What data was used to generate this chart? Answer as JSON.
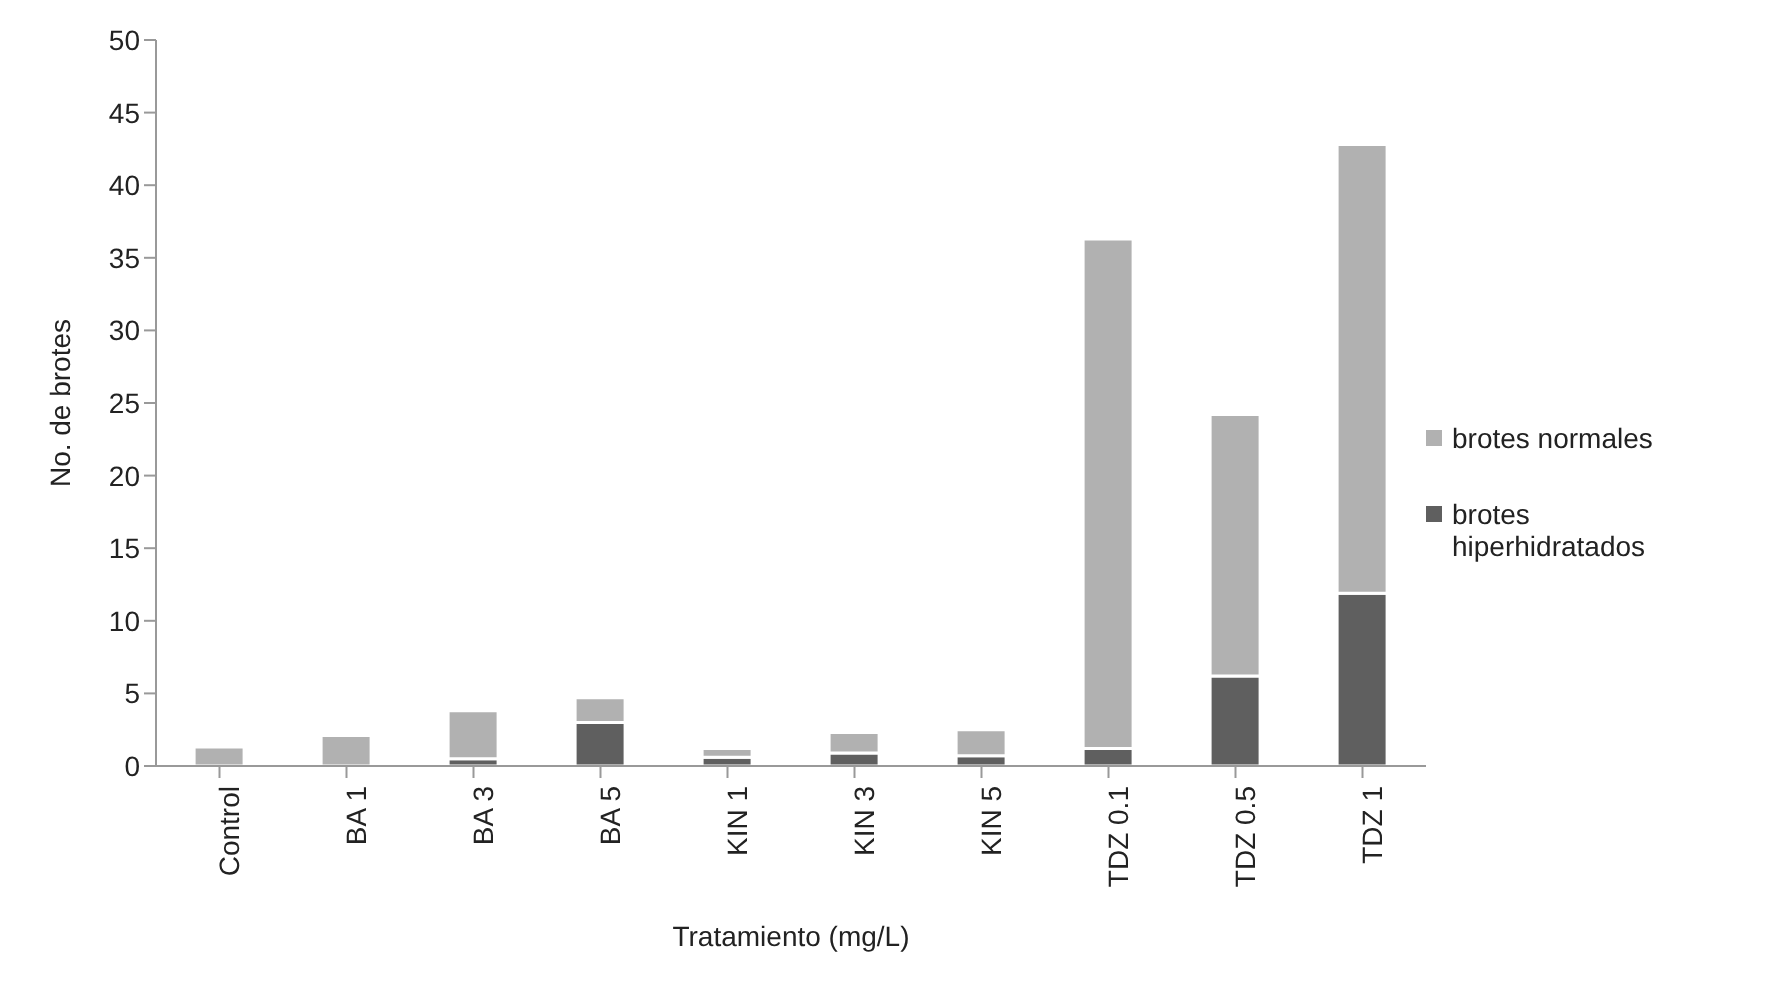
{
  "chart_data": {
    "type": "bar",
    "stacked": true,
    "xlabel": "Tratamiento (mg/L)",
    "ylabel": "No. de brotes",
    "categories": [
      "Control",
      "BA 1",
      "BA 3",
      "BA 5",
      "KIN 1",
      "KIN 3",
      "KIN 5",
      "TDZ 0.1",
      "TDZ 0.5",
      "TDZ 1"
    ],
    "series": [
      {
        "name": "brotes hiperhidratados",
        "color": "#5f5f5f",
        "values": [
          0,
          0,
          0.5,
          3,
          0.6,
          0.9,
          0.7,
          1.2,
          6.2,
          11.9
        ]
      },
      {
        "name": "brotes normales",
        "color": "#b1b1b1",
        "values": [
          1.3,
          2.1,
          3.3,
          1.7,
          0.6,
          1.4,
          1.8,
          35.1,
          18,
          30.9
        ]
      }
    ],
    "ylim": [
      0,
      50
    ],
    "yticks": [
      0,
      5,
      10,
      15,
      20,
      25,
      30,
      35,
      40,
      45,
      50
    ],
    "grid": false,
    "legend": "right"
  }
}
